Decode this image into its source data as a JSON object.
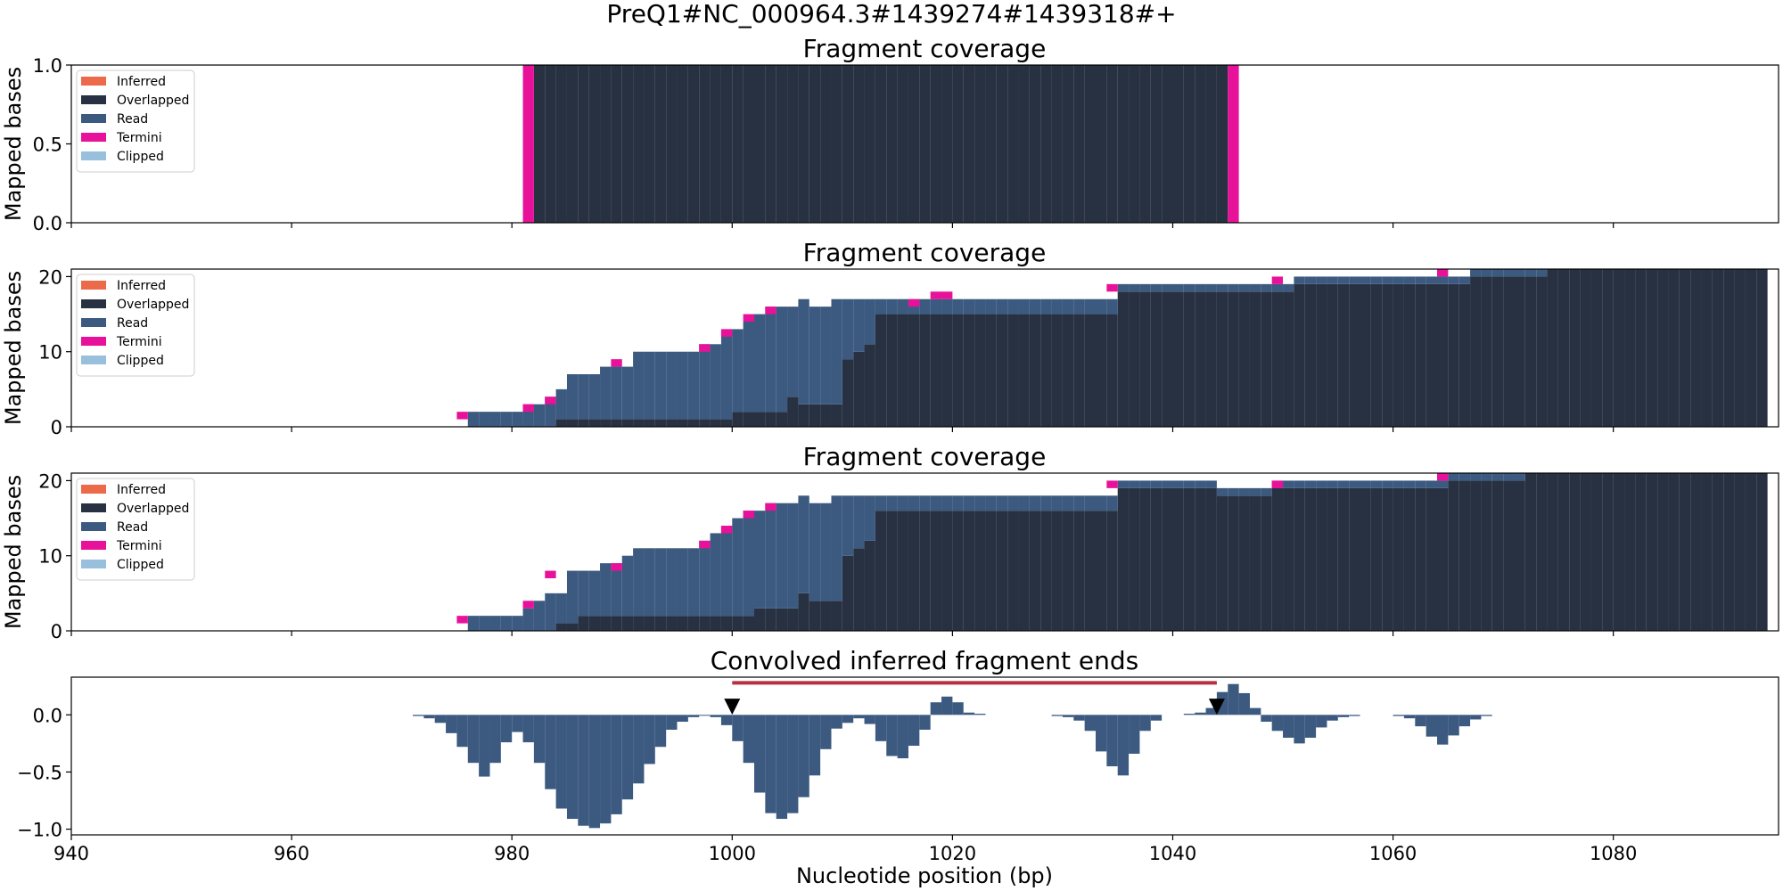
{
  "figure": {
    "suptitle": "PreQ1#NC_000964.3#1439274#1439318#+",
    "xlabel": "Nucleotide position (bp)"
  },
  "colors": {
    "Inferred": "#ec6a4a",
    "Overlapped": "#283141",
    "Read": "#3c5a80",
    "Termini": "#e8119a",
    "Clipped": "#98c0dc",
    "line": "#b5313f",
    "marker": "#000000"
  },
  "chart_data": [
    {
      "type": "area",
      "title": "Fragment coverage",
      "ylabel": "Mapped bases",
      "xlim": [
        940,
        1095
      ],
      "ylim": [
        0,
        1
      ],
      "yticks": [
        "0.0",
        "0.5",
        "1.0"
      ],
      "ytick_values": [
        0,
        0.5,
        1
      ],
      "legend": [
        "Inferred",
        "Overlapped",
        "Read",
        "Termini",
        "Clipped"
      ],
      "legend_position": "upper-left",
      "x_start": 981,
      "series": [
        {
          "name": "Overlapped",
          "values": [
            0,
            1,
            1,
            1,
            1,
            1,
            1,
            1,
            1,
            1,
            1,
            1,
            1,
            1,
            1,
            1,
            1,
            1,
            1,
            1,
            1,
            1,
            1,
            1,
            1,
            1,
            1,
            1,
            1,
            1,
            1,
            1,
            1,
            1,
            1,
            1,
            1,
            1,
            1,
            1,
            1,
            1,
            1,
            1,
            1,
            1,
            1,
            1,
            1,
            1,
            1,
            1,
            1,
            1,
            1,
            1,
            1,
            1,
            1,
            1,
            1,
            1,
            1,
            1,
            0
          ]
        },
        {
          "name": "Read",
          "values": [
            0,
            0,
            0,
            0,
            0,
            0,
            0,
            0,
            0,
            0,
            0,
            0,
            0,
            0,
            0,
            0,
            0,
            0,
            0,
            0,
            0,
            0,
            0,
            0,
            0,
            0,
            0,
            0,
            0,
            0,
            0,
            0,
            0,
            0,
            0,
            0,
            0,
            0,
            0,
            0,
            0,
            0,
            0,
            0,
            0,
            0,
            0,
            0,
            0,
            0,
            0,
            0,
            0,
            0,
            0,
            0,
            0,
            0,
            0,
            0,
            0,
            0,
            0,
            0,
            0
          ]
        },
        {
          "name": "Termini",
          "values": [
            1,
            0,
            0,
            0,
            0,
            0,
            0,
            0,
            0,
            0,
            0,
            0,
            0,
            0,
            0,
            0,
            0,
            0,
            0,
            0,
            0,
            0,
            0,
            0,
            0,
            0,
            0,
            0,
            0,
            0,
            0,
            0,
            0,
            0,
            0,
            0,
            0,
            0,
            0,
            0,
            0,
            0,
            0,
            0,
            0,
            0,
            0,
            0,
            0,
            0,
            0,
            0,
            0,
            0,
            0,
            0,
            0,
            0,
            0,
            0,
            0,
            0,
            0,
            0,
            1
          ]
        }
      ]
    },
    {
      "type": "area",
      "title": "Fragment coverage",
      "ylabel": "Mapped bases",
      "xlim": [
        940,
        1095
      ],
      "ylim": [
        0,
        21
      ],
      "yticks": [
        "0",
        "10",
        "20"
      ],
      "ytick_values": [
        0,
        10,
        20
      ],
      "legend": [
        "Inferred",
        "Overlapped",
        "Read",
        "Termini",
        "Clipped"
      ],
      "legend_position": "upper-left",
      "x_start": 975,
      "series": [
        {
          "name": "Overlapped",
          "values": [
            0,
            0,
            0,
            0,
            0,
            0,
            0,
            0,
            0,
            1,
            1,
            1,
            1,
            1,
            1,
            1,
            1,
            1,
            1,
            1,
            1,
            1,
            1,
            1,
            1,
            2,
            2,
            2,
            2,
            2,
            4,
            3,
            3,
            3,
            3,
            9,
            10,
            11,
            15,
            15,
            15,
            15,
            15,
            15,
            15,
            15,
            15,
            15,
            15,
            15,
            15,
            15,
            15,
            15,
            15,
            15,
            15,
            15,
            15,
            15,
            18,
            18,
            18,
            18,
            18,
            18,
            18,
            18,
            18,
            18,
            18,
            18,
            18,
            18,
            18,
            18,
            19,
            19,
            19,
            19,
            19,
            19,
            19,
            19,
            19,
            19,
            19,
            19,
            19,
            19,
            19,
            19,
            20,
            20,
            20,
            20,
            20,
            20,
            20,
            21,
            21,
            21,
            21,
            21,
            21,
            21,
            21,
            21,
            21,
            21,
            21,
            21,
            21,
            21,
            21,
            21,
            21,
            21,
            21
          ]
        },
        {
          "name": "Read",
          "values": [
            0,
            2,
            2,
            2,
            2,
            2,
            3,
            3,
            4,
            5,
            7,
            7,
            7,
            8,
            8,
            8,
            10,
            10,
            10,
            10,
            10,
            10,
            11,
            11,
            13,
            13,
            14,
            15,
            16,
            16,
            16,
            17,
            16,
            16,
            17,
            17,
            17,
            17,
            17,
            17,
            17,
            17,
            17,
            17,
            17,
            17,
            17,
            17,
            17,
            17,
            17,
            17,
            17,
            17,
            17,
            17,
            17,
            17,
            17,
            17,
            19,
            19,
            19,
            19,
            19,
            19,
            19,
            19,
            19,
            19,
            19,
            19,
            19,
            19,
            19,
            19,
            20,
            20,
            20,
            20,
            20,
            20,
            20,
            20,
            20,
            20,
            20,
            20,
            20,
            20,
            20,
            20,
            21,
            21,
            21,
            21,
            21,
            21,
            21,
            21,
            21,
            21,
            21,
            21,
            21,
            21,
            21,
            21,
            21,
            21,
            21,
            21,
            21,
            21,
            21,
            21,
            21,
            21,
            21
          ]
        },
        {
          "name": "Termini",
          "values": [
            2,
            0,
            0,
            0,
            0,
            0,
            3,
            0,
            4,
            0,
            0,
            0,
            0,
            0,
            9,
            0,
            0,
            0,
            0,
            0,
            0,
            0,
            11,
            0,
            13,
            0,
            15,
            0,
            16,
            0,
            0,
            0,
            0,
            0,
            0,
            0,
            0,
            0,
            0,
            0,
            0,
            17,
            0,
            18,
            18,
            0,
            0,
            0,
            0,
            0,
            0,
            0,
            0,
            0,
            0,
            0,
            0,
            0,
            0,
            19,
            0,
            0,
            0,
            0,
            0,
            0,
            0,
            0,
            0,
            0,
            0,
            0,
            0,
            0,
            20,
            0,
            0,
            0,
            0,
            0,
            0,
            0,
            0,
            0,
            0,
            0,
            0,
            0,
            0,
            21,
            0,
            0,
            0,
            0,
            0,
            0,
            0,
            0,
            0,
            0,
            0,
            0,
            0,
            0,
            0,
            0,
            0,
            0,
            0,
            0,
            0,
            0,
            0
          ]
        }
      ]
    },
    {
      "type": "area",
      "title": "Fragment coverage",
      "ylabel": "Mapped bases",
      "xlim": [
        940,
        1095
      ],
      "ylim": [
        0,
        21
      ],
      "yticks": [
        "0",
        "10",
        "20"
      ],
      "ytick_values": [
        0,
        10,
        20
      ],
      "legend": [
        "Inferred",
        "Overlapped",
        "Read",
        "Termini",
        "Clipped"
      ],
      "legend_position": "upper-left",
      "x_start": 975,
      "series": [
        {
          "name": "Overlapped",
          "values": [
            0,
            0,
            0,
            0,
            0,
            0,
            0,
            0,
            0,
            1,
            1,
            2,
            2,
            2,
            2,
            2,
            2,
            2,
            2,
            2,
            2,
            2,
            2,
            2,
            2,
            2,
            2,
            3,
            3,
            3,
            3,
            5,
            4,
            4,
            4,
            10,
            11,
            12,
            16,
            16,
            16,
            16,
            16,
            16,
            16,
            16,
            16,
            16,
            16,
            16,
            16,
            16,
            16,
            16,
            16,
            16,
            16,
            16,
            16,
            16,
            19,
            19,
            19,
            19,
            19,
            19,
            19,
            19,
            19,
            18,
            18,
            18,
            18,
            18,
            19,
            19,
            19,
            19,
            19,
            19,
            19,
            19,
            19,
            19,
            19,
            19,
            19,
            19,
            19,
            19,
            20,
            20,
            20,
            20,
            20,
            20,
            20,
            21,
            21,
            21,
            21,
            21,
            21,
            21,
            21,
            21,
            21,
            21,
            21,
            21,
            21,
            21,
            21,
            21,
            21,
            21,
            21,
            21,
            21
          ]
        },
        {
          "name": "Read",
          "values": [
            0,
            2,
            2,
            2,
            2,
            2,
            3,
            4,
            5,
            5,
            8,
            8,
            8,
            9,
            9,
            10,
            11,
            11,
            11,
            11,
            11,
            11,
            12,
            13,
            14,
            15,
            16,
            16,
            17,
            17,
            17,
            18,
            17,
            17,
            18,
            18,
            18,
            18,
            18,
            18,
            18,
            18,
            18,
            18,
            18,
            18,
            18,
            18,
            18,
            18,
            18,
            18,
            18,
            18,
            18,
            18,
            18,
            18,
            18,
            18,
            20,
            20,
            20,
            20,
            20,
            20,
            20,
            20,
            20,
            19,
            19,
            19,
            19,
            19,
            20,
            20,
            20,
            20,
            20,
            20,
            20,
            20,
            20,
            20,
            20,
            20,
            20,
            20,
            20,
            20,
            21,
            21,
            21,
            21,
            21,
            21,
            21,
            21,
            21,
            21,
            21,
            21,
            21,
            21,
            21,
            21,
            21,
            21,
            21,
            21,
            21,
            21,
            21,
            21,
            21,
            21,
            21,
            21,
            21
          ]
        },
        {
          "name": "Termini",
          "values": [
            2,
            0,
            0,
            0,
            0,
            0,
            4,
            0,
            8,
            0,
            0,
            0,
            0,
            0,
            9,
            0,
            0,
            0,
            0,
            0,
            0,
            0,
            12,
            0,
            14,
            0,
            16,
            0,
            17,
            0,
            0,
            0,
            0,
            0,
            0,
            0,
            0,
            0,
            0,
            0,
            0,
            0,
            0,
            0,
            0,
            0,
            0,
            0,
            0,
            0,
            0,
            0,
            0,
            0,
            0,
            0,
            0,
            0,
            0,
            20,
            0,
            0,
            0,
            0,
            0,
            0,
            0,
            0,
            0,
            0,
            0,
            0,
            0,
            0,
            20,
            0,
            0,
            0,
            0,
            0,
            0,
            0,
            0,
            0,
            0,
            0,
            0,
            0,
            0,
            21,
            0,
            0,
            0,
            0,
            0,
            0,
            0,
            0,
            0,
            0,
            0,
            0,
            0,
            0,
            0,
            0,
            0,
            0,
            0,
            0,
            0,
            0,
            0
          ]
        }
      ]
    },
    {
      "type": "bar",
      "title": "Convolved inferred fragment ends",
      "xlim": [
        940,
        1095
      ],
      "ylim": [
        -1.05,
        0.33
      ],
      "yticks": [
        "−1.0",
        "−0.5",
        "0.0"
      ],
      "ytick_values": [
        -1,
        -0.5,
        0
      ],
      "xticks": [
        "940",
        "960",
        "980",
        "1000",
        "1020",
        "1040",
        "1060",
        "1080"
      ],
      "xtick_values": [
        940,
        960,
        980,
        1000,
        1020,
        1040,
        1060,
        1080
      ],
      "segments": [
        {
          "x_start": 971,
          "values": [
            -0.01,
            -0.03,
            -0.07,
            -0.16,
            -0.28,
            -0.42,
            -0.54,
            -0.42,
            -0.24,
            -0.15,
            -0.24,
            -0.42,
            -0.65,
            -0.82,
            -0.91,
            -0.97,
            -0.99,
            -0.95,
            -0.87,
            -0.74,
            -0.6,
            -0.43,
            -0.28,
            -0.13,
            -0.06,
            -0.02,
            0,
            -0.02,
            -0.09,
            -0.23,
            -0.42,
            -0.68,
            -0.86,
            -0.91,
            -0.86,
            -0.72,
            -0.53,
            -0.3,
            -0.12,
            -0.07,
            -0.03,
            -0.08,
            -0.23,
            -0.36,
            -0.38,
            -0.27,
            -0.13,
            0.11,
            0.16,
            0.11,
            0.02,
            0.01
          ]
        },
        {
          "x_start": 1029,
          "values": [
            -0.01,
            -0.02,
            -0.05,
            -0.14,
            -0.32,
            -0.45,
            -0.53,
            -0.34,
            -0.14,
            -0.05
          ]
        },
        {
          "x_start": 1041,
          "values": [
            0.01,
            0.02,
            0.06,
            0.2,
            0.27,
            0.19,
            0.06,
            -0.06,
            -0.14,
            -0.2,
            -0.25,
            -0.2,
            -0.11,
            -0.05,
            -0.02,
            -0.01
          ]
        },
        {
          "x_start": 1060,
          "values": [
            -0.01,
            -0.03,
            -0.1,
            -0.19,
            -0.26,
            -0.18,
            -0.1,
            -0.04,
            -0.01
          ]
        }
      ],
      "markers": [
        {
          "x": 1000,
          "y": 0.08
        },
        {
          "x": 1044,
          "y": 0.08
        }
      ],
      "line": {
        "x": [
          1000,
          1044
        ],
        "y": 0.28
      }
    }
  ]
}
